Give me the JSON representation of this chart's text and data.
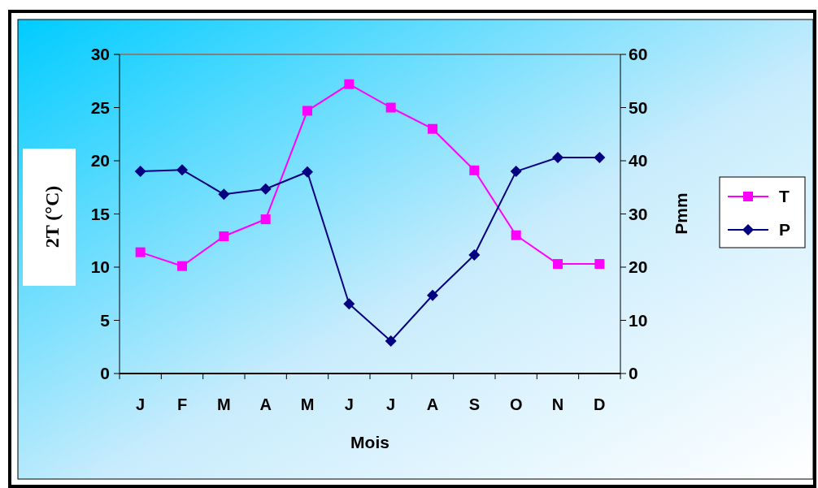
{
  "chart_data": {
    "type": "line",
    "xlabel": "Mois",
    "ylabel": "2T (°C)",
    "y2label": "Pmm",
    "categories": [
      "J",
      "F",
      "M",
      "A",
      "M",
      "J",
      "J",
      "A",
      "S",
      "O",
      "N",
      "D"
    ],
    "series": [
      {
        "name": "T",
        "color": "#ff00ff",
        "marker": "square",
        "values": [
          11.4,
          10.1,
          12.9,
          14.5,
          24.7,
          27.2,
          25.0,
          23.0,
          19.1,
          13.0,
          10.3,
          10.3
        ]
      },
      {
        "name": "P",
        "color": "#000080",
        "marker": "diamond",
        "axis": "y2",
        "values": [
          38.0,
          38.3,
          33.7,
          34.7,
          37.9,
          13.1,
          6.1,
          14.7,
          22.3,
          38.0,
          40.6,
          40.6
        ]
      }
    ],
    "ylim": [
      0,
      30
    ],
    "yticks": [
      0,
      5,
      10,
      15,
      20,
      25,
      30
    ],
    "y2lim": [
      0,
      60
    ],
    "y2ticks": [
      0,
      10,
      20,
      30,
      40,
      50,
      60
    ],
    "grid": false,
    "legend": "right"
  }
}
